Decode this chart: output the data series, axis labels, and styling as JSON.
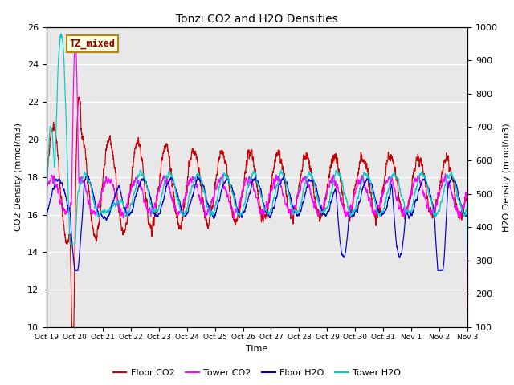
{
  "title": "Tonzi CO2 and H2O Densities",
  "xlabel": "Time",
  "ylabel_left": "CO2 Density (mmol/m3)",
  "ylabel_right": "H2O Density (mmol/m3)",
  "ylim_left": [
    10,
    26
  ],
  "ylim_right": [
    100,
    1000
  ],
  "annotation_text": "TZ_mixed",
  "bg_color": "#e8e8e8",
  "line_colors": {
    "floor_co2": "#cc0000",
    "tower_co2": "#ff00ff",
    "floor_h2o": "#0000cc",
    "tower_h2o": "#00cccc"
  },
  "legend_labels": [
    "Floor CO2",
    "Tower CO2",
    "Floor H2O",
    "Tower H2O"
  ],
  "x_tick_labels": [
    "Oct 19",
    "Oct 20",
    "Oct 21",
    "Oct 22",
    "Oct 23",
    "Oct 24",
    "Oct 25",
    "Oct 26",
    "Oct 27",
    "Oct 28",
    "Oct 29",
    "Oct 30",
    "Oct 31",
    "Nov 1",
    "Nov 2",
    "Nov 3"
  ],
  "n_points": 4320,
  "seed": 7
}
